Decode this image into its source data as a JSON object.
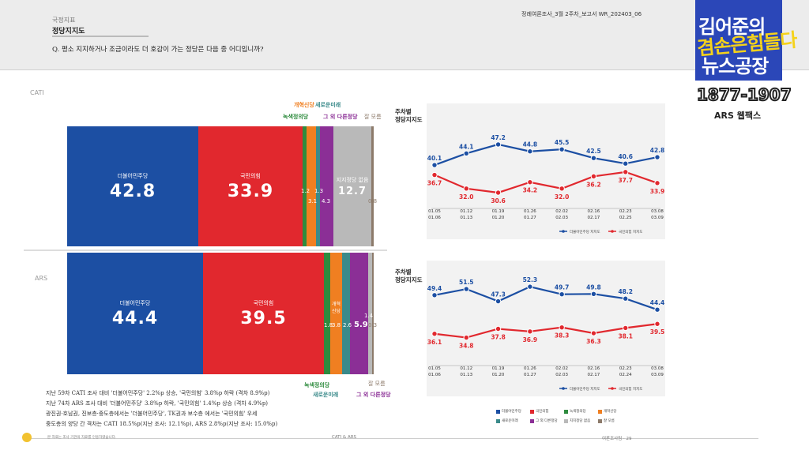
{
  "header": {
    "section_tag": "국정지표",
    "section_title": "정당지지도",
    "question": "Q. 평소 지지하거나 조금이라도 더 호감이 가는 정당은 다음 중 어디입니까?",
    "doc_title": "정례여론조사_3월 2주차_보고서    WR_202403_06"
  },
  "sections": {
    "cati": "CATI",
    "ars": "ARS"
  },
  "colors": {
    "dem": "#1c4fa3",
    "ppp": "#e1282e",
    "green": "#2e8b3e",
    "reform": "#f07f21",
    "newfuture": "#3a8a8a",
    "rebuild": "#8b2f96",
    "none": "#b9b9b9",
    "dk": "#8c7a6a"
  },
  "cati": {
    "dem": {
      "name": "더불어민주당",
      "value": "42.8"
    },
    "ppp": {
      "name": "국민의힘",
      "value": "33.9"
    },
    "green": {
      "value": "1.2"
    },
    "reform": {
      "value": "3.1"
    },
    "newfuture": {
      "value": "1.3"
    },
    "other": {
      "value": "4.3"
    },
    "none": {
      "name": "지지정당 없음",
      "value": "12.7"
    },
    "dk": {
      "value": "0.8"
    }
  },
  "ars": {
    "dem": {
      "name": "더불어민주당",
      "value": "44.4"
    },
    "ppp": {
      "name": "국민의힘",
      "value": "39.5"
    },
    "green": {
      "value": "1.8"
    },
    "reform": {
      "name": "개혁신당",
      "value": "3.8"
    },
    "newfuture": {
      "value": "2.6"
    },
    "other": {
      "value": "5.9"
    },
    "none": {
      "value": "1.4"
    },
    "dk": {
      "value": "0.3"
    }
  },
  "party_labels": {
    "green": "녹색정의당",
    "reform": "개혁신당",
    "newfuture": "새로운미래",
    "other": "그 외 다른정당",
    "dk": "잘 모름"
  },
  "notes": [
    "지난 59차 CATI 조사 대비 '더불어민주당' 2.2%p 상승, '국민의힘' 3.8%p 하락 (격차 8.9%p)",
    "지난 74차 ARS 조사 대비 '더불어민주당' 3.8%p 하락, '국민의힘' 1.4%p 상승 (격차 4.9%p)",
    "광진권·호남권, 진보층·중도층에서는 '더불어민주당', TK권과 보수층 에서는 '국민의힘' 우세",
    "중도층의 양당 간 격차는 CATI 18.5%p(지난 조사: 12.1%p), ARS 2.8%p(지난 조사: 15.0%p)"
  ],
  "trend_title_1": "주차별",
  "trend_title_2": "정당지지도",
  "trend_legend": {
    "dem": "더불어민주당 지지도",
    "ppp": "국민의힘 지지도"
  },
  "chart_data": [
    {
      "type": "line",
      "title": "주차별 정당지지도 (CATI)",
      "categories": [
        "01.05\n01.06",
        "01.12\n01.13",
        "01.19\n01.20",
        "01.26\n01.27",
        "02.02\n02.03",
        "02.16\n02.17",
        "02.23\n02.25",
        "03.08\n03.09"
      ],
      "series": [
        {
          "name": "더불어민주당 지지도",
          "values": [
            40.1,
            44.1,
            47.2,
            44.8,
            45.5,
            42.5,
            40.6,
            42.8
          ]
        },
        {
          "name": "국민의힘 지지도",
          "values": [
            36.7,
            32.0,
            30.6,
            34.2,
            32.0,
            36.2,
            37.7,
            33.9
          ]
        }
      ],
      "ylim": [
        20,
        60
      ]
    },
    {
      "type": "line",
      "title": "주차별 정당지지도 (ARS)",
      "categories": [
        "01.05\n01.06",
        "01.12\n01.13",
        "01.19\n01.20",
        "01.26\n01.27",
        "02.02\n02.03",
        "02.16\n02.17",
        "02.23\n02.24",
        "03.08\n03.09"
      ],
      "series": [
        {
          "name": "더불어민주당 지지도",
          "values": [
            49.4,
            51.5,
            47.3,
            52.3,
            49.7,
            49.8,
            48.2,
            44.4
          ]
        },
        {
          "name": "국민의힘 지지도",
          "values": [
            36.1,
            34.8,
            37.8,
            36.9,
            38.3,
            36.3,
            38.1,
            39.5
          ]
        }
      ],
      "ylim": [
        20,
        60
      ]
    }
  ],
  "bottom_legend": [
    "더불어민주당",
    "국민의힘",
    "녹색정의당",
    "개혁신당",
    "새로운미래",
    "그 외 다른정당",
    "지지정당 없음",
    "잘 모름"
  ],
  "footer": {
    "left": "본 자료는 조사 기관의 자료를 인용하였습니다.",
    "center": "CATI & ARS",
    "right": "여론조사팀 · 29"
  },
  "broadcast": {
    "title1": "김어준의",
    "title2": "겸손은힘들다",
    "title3": "뉴스공장",
    "phone": "1877-1907",
    "ars": "ARS 웹팩스"
  }
}
